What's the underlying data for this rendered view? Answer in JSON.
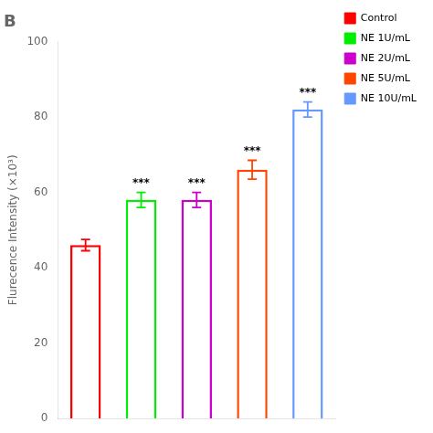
{
  "chart_data": {
    "type": "bar",
    "title": "B",
    "ylabel": "Flurecence Intensity (×10³)",
    "categories": [
      "Control",
      "NE 1U/mL",
      "NE 2U/mL",
      "NE 5U/mL",
      "NE 10U/mL"
    ],
    "values": [
      46,
      58,
      58,
      66,
      82
    ],
    "errors": [
      1.5,
      2.0,
      2.0,
      2.5,
      2.0
    ],
    "annotations": [
      null,
      "***",
      "***",
      "***",
      "***"
    ],
    "colors": [
      "#FF0000",
      "#00EE00",
      "#CC00CC",
      "#FF4500",
      "#6699FF"
    ],
    "ylim": [
      0,
      100
    ],
    "yticks": [
      0,
      20,
      40,
      60,
      80,
      100
    ],
    "grid": false,
    "legend": "upper right",
    "tick_labels": "y"
  }
}
